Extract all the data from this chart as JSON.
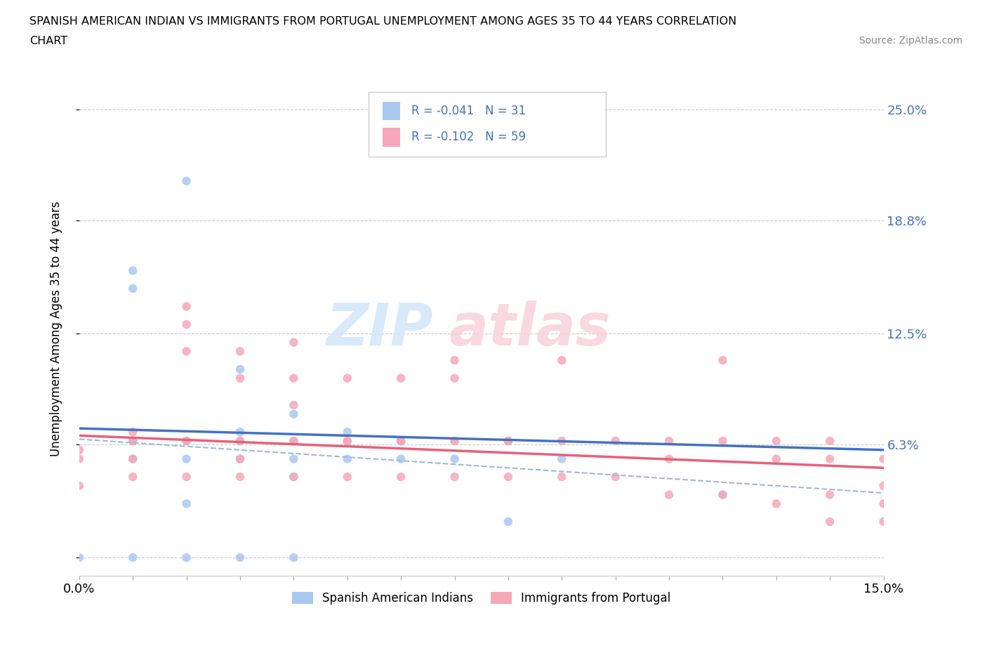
{
  "title_line1": "SPANISH AMERICAN INDIAN VS IMMIGRANTS FROM PORTUGAL UNEMPLOYMENT AMONG AGES 35 TO 44 YEARS CORRELATION",
  "title_line2": "CHART",
  "source": "Source: ZipAtlas.com",
  "ylabel": "Unemployment Among Ages 35 to 44 years",
  "xlim": [
    0.0,
    0.15
  ],
  "ylim": [
    -0.01,
    0.265
  ],
  "ytick_vals": [
    0.0,
    0.063,
    0.125,
    0.188,
    0.25
  ],
  "ytick_labels": [
    "",
    "6.3%",
    "12.5%",
    "18.8%",
    "25.0%"
  ],
  "color_blue": "#a8c8f0",
  "color_pink": "#f5a8b8",
  "trend_blue_color": "#4472c4",
  "trend_pink_color": "#e8607a",
  "trend_pink_dash_color": "#a0b8d8",
  "legend_text1": "R = -0.041   N = 31",
  "legend_text2": "R = -0.102   N = 59",
  "legend_label1": "Spanish American Indians",
  "legend_label2": "Immigrants from Portugal",
  "blue_x": [
    0.01,
    0.01,
    0.01,
    0.02,
    0.02,
    0.02,
    0.03,
    0.03,
    0.03,
    0.03,
    0.04,
    0.04,
    0.04,
    0.04,
    0.05,
    0.05,
    0.06,
    0.06,
    0.07,
    0.07,
    0.08,
    0.08,
    0.09,
    0.0,
    0.01,
    0.02,
    0.02,
    0.03,
    0.04,
    0.12,
    0.01
  ],
  "blue_y": [
    0.065,
    0.055,
    0.15,
    0.21,
    0.065,
    0.055,
    0.105,
    0.07,
    0.065,
    0.055,
    0.08,
    0.065,
    0.055,
    0.045,
    0.07,
    0.055,
    0.065,
    0.055,
    0.065,
    0.055,
    0.065,
    0.02,
    0.055,
    0.0,
    0.0,
    0.0,
    0.03,
    0.0,
    0.0,
    0.035,
    0.16
  ],
  "pink_x": [
    0.0,
    0.0,
    0.0,
    0.01,
    0.01,
    0.01,
    0.01,
    0.02,
    0.02,
    0.02,
    0.02,
    0.02,
    0.03,
    0.03,
    0.03,
    0.03,
    0.03,
    0.04,
    0.04,
    0.04,
    0.04,
    0.04,
    0.05,
    0.05,
    0.05,
    0.06,
    0.06,
    0.06,
    0.07,
    0.07,
    0.07,
    0.07,
    0.08,
    0.08,
    0.09,
    0.09,
    0.09,
    0.1,
    0.1,
    0.11,
    0.11,
    0.11,
    0.12,
    0.12,
    0.12,
    0.13,
    0.13,
    0.13,
    0.14,
    0.14,
    0.14,
    0.14,
    0.15,
    0.15,
    0.15,
    0.15,
    0.05,
    0.06,
    0.08
  ],
  "pink_y": [
    0.055,
    0.06,
    0.04,
    0.07,
    0.065,
    0.055,
    0.045,
    0.14,
    0.13,
    0.115,
    0.065,
    0.045,
    0.115,
    0.1,
    0.065,
    0.055,
    0.045,
    0.12,
    0.1,
    0.085,
    0.065,
    0.045,
    0.1,
    0.065,
    0.045,
    0.1,
    0.065,
    0.045,
    0.11,
    0.1,
    0.065,
    0.045,
    0.065,
    0.045,
    0.11,
    0.065,
    0.045,
    0.065,
    0.045,
    0.065,
    0.055,
    0.035,
    0.11,
    0.065,
    0.035,
    0.065,
    0.055,
    0.03,
    0.065,
    0.055,
    0.035,
    0.02,
    0.055,
    0.04,
    0.03,
    0.02,
    0.065,
    0.065,
    0.065
  ]
}
